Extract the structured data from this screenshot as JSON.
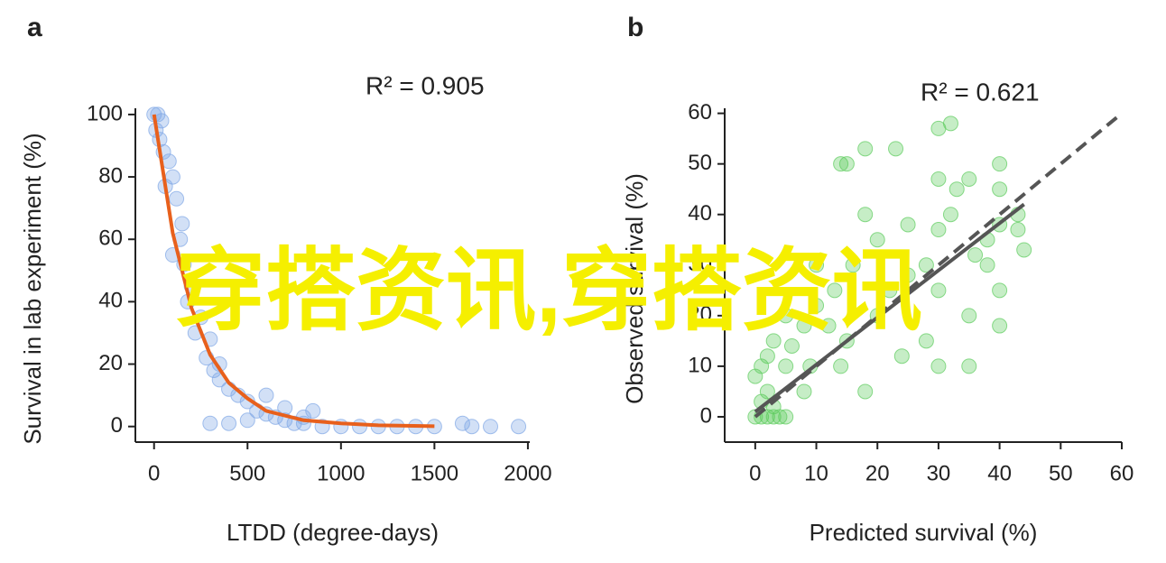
{
  "watermark": "穿搭资讯,穿搭资讯",
  "chart_data": [
    {
      "type": "scatter",
      "panel_label": "a",
      "annotation": "R² = 0.905",
      "xlabel": "LTDD (degree-days)",
      "ylabel": "Survival in lab experiment (%)",
      "xlim": [
        -100,
        2010
      ],
      "ylim": [
        -5,
        102
      ],
      "xticks": [
        0,
        500,
        1000,
        1500,
        2000
      ],
      "yticks": [
        0,
        20,
        40,
        60,
        80,
        100
      ],
      "series": [
        {
          "mode": "markers",
          "color": "#7fa6e6",
          "x": [
            0,
            20,
            40,
            10,
            30,
            50,
            80,
            100,
            60,
            120,
            150,
            140,
            100,
            160,
            200,
            180,
            250,
            220,
            300,
            280,
            320,
            350,
            400,
            450,
            500,
            550,
            600,
            650,
            700,
            750,
            800,
            900,
            1000,
            1100,
            1200,
            1300,
            1400,
            1500,
            1650,
            1700,
            1800,
            1950,
            400,
            300,
            500,
            600,
            700,
            800,
            850,
            350
          ],
          "values": [
            100,
            100,
            98,
            95,
            92,
            88,
            85,
            80,
            77,
            73,
            65,
            60,
            55,
            52,
            45,
            40,
            35,
            30,
            28,
            22,
            18,
            15,
            12,
            10,
            8,
            5,
            4,
            3,
            2,
            1,
            1,
            0,
            0,
            0,
            0,
            0,
            0,
            0,
            1,
            0,
            0,
            0,
            1,
            1,
            2,
            10,
            6,
            3,
            5,
            20
          ]
        },
        {
          "mode": "line",
          "color": "#e8601c",
          "x": [
            0,
            100,
            200,
            300,
            400,
            500,
            600,
            800,
            1000,
            1200,
            1500
          ],
          "values": [
            100,
            62,
            38,
            23,
            14,
            9,
            5,
            2,
            1,
            0.4,
            0.1
          ]
        }
      ]
    },
    {
      "type": "scatter",
      "panel_label": "b",
      "annotation": "R² = 0.621",
      "xlabel": "Predicted survival (%)",
      "ylabel": "Observed survival (%)",
      "xlim": [
        -5,
        60
      ],
      "ylim": [
        -5,
        61
      ],
      "xticks": [
        0,
        10,
        20,
        30,
        40,
        50,
        60
      ],
      "yticks": [
        0,
        10,
        20,
        30,
        40,
        50,
        60
      ],
      "series": [
        {
          "mode": "markers",
          "color": "#5ccc5c",
          "x": [
            0,
            1,
            2,
            3,
            4,
            5,
            1,
            2,
            3,
            0,
            1,
            2,
            3,
            5,
            5,
            6,
            8,
            8,
            9,
            10,
            10,
            12,
            13,
            14,
            14,
            15,
            15,
            16,
            18,
            18,
            18,
            20,
            20,
            22,
            23,
            24,
            25,
            25,
            28,
            28,
            30,
            30,
            30,
            30,
            32,
            32,
            33,
            35,
            35,
            35,
            36,
            38,
            40,
            40,
            40,
            40,
            40,
            43,
            43,
            44,
            30,
            38
          ],
          "values": [
            0,
            0,
            0,
            0,
            0,
            0,
            3,
            5,
            2,
            8,
            10,
            12,
            15,
            10,
            20,
            14,
            5,
            18,
            10,
            22,
            30,
            18,
            25,
            50,
            10,
            15,
            50,
            30,
            53,
            40,
            5,
            20,
            35,
            25,
            53,
            12,
            38,
            28,
            30,
            15,
            57,
            47,
            37,
            25,
            40,
            58,
            45,
            47,
            10,
            20,
            32,
            30,
            50,
            45,
            38,
            25,
            18,
            40,
            37,
            33,
            10,
            35
          ]
        },
        {
          "mode": "dashed",
          "color": "#555555",
          "x": [
            0,
            60
          ],
          "values": [
            0,
            60
          ]
        },
        {
          "mode": "line",
          "color": "#555555",
          "x": [
            0,
            44
          ],
          "values": [
            1,
            42
          ]
        }
      ]
    }
  ]
}
